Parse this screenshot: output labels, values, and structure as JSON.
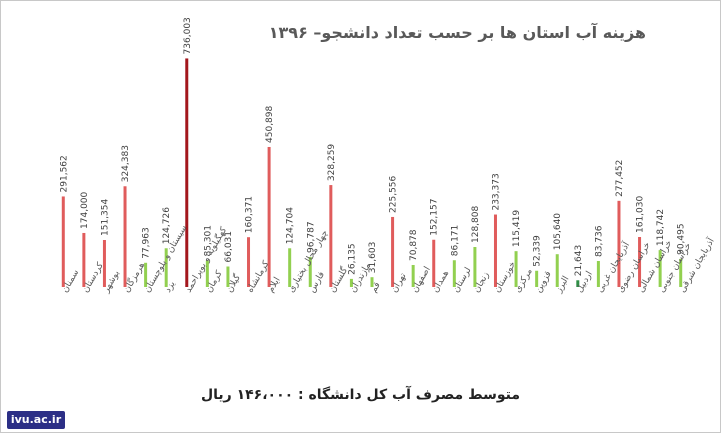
{
  "chart_data": {
    "type": "bar",
    "title": "هزینه آب استان ها بر حسب تعداد دانشجو– ۱۳۹۶",
    "xlabel": "",
    "ylabel": "",
    "ylim": [
      0,
      760000
    ],
    "grid": false,
    "legend": "none",
    "categories": [
      "سمنان",
      "کردستان",
      "بوشهر",
      "هرمزگان",
      "سیستان و بلوچستان",
      "یزد",
      "کهگیلویه و بویراحمد",
      "کرمان",
      "گیلان",
      "کرمانشاه",
      "ایلام",
      "چهار محال بختیاری",
      "فارس",
      "گلستان",
      "مازندران",
      "قم",
      "تهران",
      "اصفهان",
      "همدان",
      "لرستان",
      "زنجان",
      "خوزستان",
      "مرکزی",
      "قزوین",
      "البرز",
      "اردبیل",
      "آذربایجان غربی",
      "خراسان رضوی",
      "خراسان شمالی",
      "خراسان جنوبی",
      "آذربایجان شرقی"
    ],
    "values": [
      291562,
      174000,
      151354,
      324383,
      77963,
      124726,
      736003,
      85301,
      66031,
      160371,
      450898,
      124704,
      96787,
      328259,
      26135,
      31603,
      225556,
      70878,
      152157,
      86171,
      128808,
      233373,
      115419,
      52339,
      105640,
      21643,
      83736,
      277452,
      161030,
      118742,
      90495
    ],
    "value_labels": [
      "291,562",
      "174,000",
      "151,354",
      "324,383",
      "77,963",
      "124,726",
      "736,003",
      "85,301",
      "66,031",
      "160,371",
      "450,898",
      "124,704",
      "96,787",
      "328,259",
      "26,135",
      "31,603",
      "225,556",
      "70,878",
      "152,157",
      "86,171",
      "128,808",
      "233,373",
      "115,419",
      "52,339",
      "105,640",
      "21,643",
      "83,736",
      "277,452",
      "161,030",
      "118,742",
      "90,495"
    ],
    "bar_groups": [
      "red",
      "red",
      "red",
      "red",
      "green",
      "green",
      "darkred",
      "green",
      "green",
      "red",
      "red",
      "green",
      "green",
      "red",
      "green",
      "green",
      "red",
      "green",
      "red",
      "green",
      "green",
      "red",
      "green",
      "green",
      "green",
      "darkgreen",
      "green",
      "red",
      "red",
      "green",
      "green"
    ],
    "colors": {
      "red": "#e05c5c",
      "green": "#92d050",
      "darkred": "#a3171d",
      "darkgreen": "#2f8f46"
    }
  },
  "footer": {
    "text": "متوسط مصرف آب کل دانشگاه : ۱۴۶،۰۰۰ ریال"
  },
  "logo": {
    "text": "ivu.ac.ir"
  }
}
